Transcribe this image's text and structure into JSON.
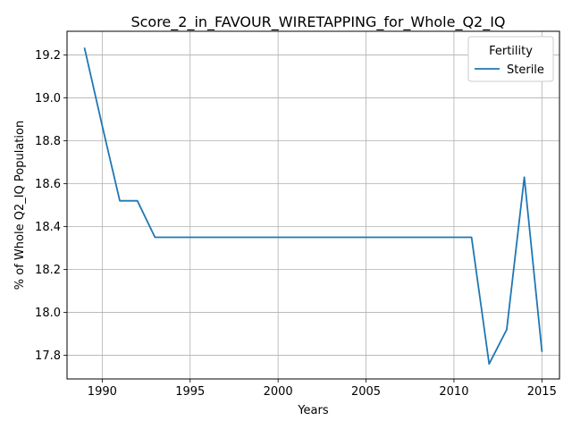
{
  "chart_data": {
    "type": "line",
    "title": "Score_2_in_FAVOUR_WIRETAPPING_for_Whole_Q2_IQ",
    "xlabel": "Years",
    "ylabel": "% of Whole Q2_IQ Population",
    "xlim": [
      1988,
      2016
    ],
    "ylim": [
      17.69,
      19.31
    ],
    "xticks": [
      1990,
      1995,
      2000,
      2005,
      2010,
      2015
    ],
    "yticks": [
      17.8,
      18.0,
      18.2,
      18.4,
      18.6,
      18.8,
      19.0,
      19.2
    ],
    "xtick_labels": [
      "1990",
      "1995",
      "2000",
      "2005",
      "2010",
      "2015"
    ],
    "ytick_labels": [
      "17.8",
      "18.0",
      "18.2",
      "18.4",
      "18.6",
      "18.8",
      "19.0",
      "19.2"
    ],
    "grid": true,
    "legend": {
      "title": "Fertility",
      "placement": "top-right"
    },
    "series": [
      {
        "name": "Sterile",
        "color": "#1f77b4",
        "x": [
          1989,
          1990,
          1991,
          1992,
          1993,
          1994,
          1995,
          1996,
          1997,
          1998,
          1999,
          2000,
          2001,
          2002,
          2003,
          2004,
          2005,
          2006,
          2007,
          2008,
          2009,
          2010,
          2011,
          2012,
          2013,
          2014,
          2015
        ],
        "y": [
          19.23,
          18.87,
          18.52,
          18.52,
          18.35,
          18.35,
          18.35,
          18.35,
          18.35,
          18.35,
          18.35,
          18.35,
          18.35,
          18.35,
          18.35,
          18.35,
          18.35,
          18.35,
          18.35,
          18.35,
          18.35,
          18.35,
          18.35,
          17.76,
          17.92,
          18.63,
          17.82
        ]
      }
    ]
  }
}
